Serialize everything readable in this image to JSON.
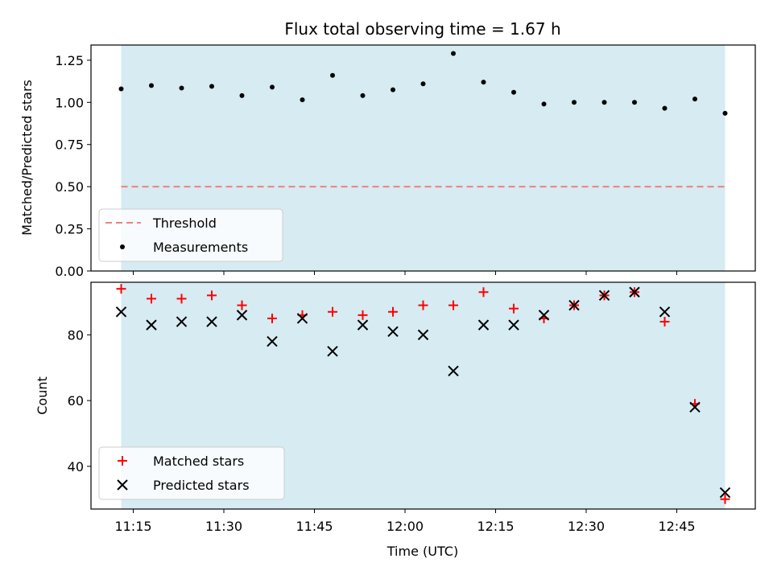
{
  "chart_data": [
    {
      "type": "scatter",
      "title": "Flux total observing time = 1.67 h",
      "xlabel": "",
      "ylabel": "Matched/Predicted stars",
      "ylim": [
        0.0,
        1.34
      ],
      "yticks": [
        "0.00",
        "0.25",
        "0.50",
        "0.75",
        "1.00",
        "1.25"
      ],
      "ytick_values": [
        0.0,
        0.25,
        0.5,
        0.75,
        1.0,
        1.25
      ],
      "xlim": [
        "11:08",
        "12:58"
      ],
      "observing_window": [
        "11:13",
        "12:53"
      ],
      "threshold": 0.5,
      "colors": {
        "span": "#add8e6",
        "threshold": "#f08080",
        "measurements": "#000000"
      },
      "legend": {
        "position": "lower-left",
        "entries": [
          "Threshold",
          "Measurements"
        ]
      },
      "series": [
        {
          "name": "Measurements",
          "x": [
            "11:13",
            "11:18",
            "11:23",
            "11:28",
            "11:33",
            "11:38",
            "11:43",
            "11:48",
            "11:53",
            "11:58",
            "12:03",
            "12:08",
            "12:13",
            "12:18",
            "12:23",
            "12:28",
            "12:33",
            "12:38",
            "12:43",
            "12:48",
            "12:53"
          ],
          "values": [
            1.08,
            1.1,
            1.085,
            1.095,
            1.04,
            1.09,
            1.015,
            1.16,
            1.04,
            1.075,
            1.11,
            1.29,
            1.12,
            1.06,
            0.99,
            1.0,
            1.0,
            1.0,
            0.965,
            1.02,
            0.935
          ]
        }
      ]
    },
    {
      "type": "scatter",
      "title": "",
      "xlabel": "Time (UTC)",
      "ylabel": "Count",
      "ylim": [
        27,
        96
      ],
      "yticks": [
        "40",
        "60",
        "80"
      ],
      "ytick_values": [
        40,
        60,
        80
      ],
      "xlim": [
        "11:08",
        "12:58"
      ],
      "xticks": [
        "11:15",
        "11:30",
        "11:45",
        "12:00",
        "12:15",
        "12:30",
        "12:45"
      ],
      "observing_window": [
        "11:13",
        "12:53"
      ],
      "colors": {
        "span": "#add8e6",
        "matched": "#ff0000",
        "predicted": "#000000"
      },
      "legend": {
        "position": "lower-left",
        "entries": [
          "Matched stars",
          "Predicted stars"
        ]
      },
      "x": [
        "11:13",
        "11:18",
        "11:23",
        "11:28",
        "11:33",
        "11:38",
        "11:43",
        "11:48",
        "11:53",
        "11:58",
        "12:03",
        "12:08",
        "12:13",
        "12:18",
        "12:23",
        "12:28",
        "12:33",
        "12:38",
        "12:43",
        "12:48",
        "12:53"
      ],
      "series": [
        {
          "name": "Matched stars",
          "values": [
            94,
            91,
            91,
            92,
            89,
            85,
            86,
            87,
            86,
            87,
            89,
            89,
            93,
            88,
            85,
            89,
            92,
            93,
            84,
            59,
            30
          ]
        },
        {
          "name": "Predicted stars",
          "values": [
            87,
            83,
            84,
            84,
            86,
            78,
            85,
            75,
            83,
            81,
            80,
            69,
            83,
            83,
            86,
            89,
            92,
            93,
            87,
            58,
            32
          ]
        }
      ]
    }
  ]
}
